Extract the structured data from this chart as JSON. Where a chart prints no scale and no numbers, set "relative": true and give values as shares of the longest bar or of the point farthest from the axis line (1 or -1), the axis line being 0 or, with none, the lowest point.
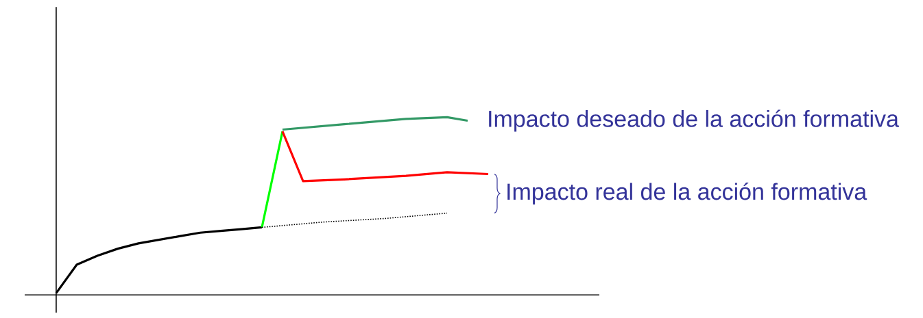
{
  "chart_data": {
    "type": "line",
    "relative": true,
    "marker": "none",
    "line_style": "solid",
    "categories": [
      null,
      null,
      null,
      null,
      null,
      null,
      null,
      null,
      null,
      null,
      null,
      null,
      null,
      null,
      null,
      null,
      null,
      null,
      null,
      null,
      null,
      null,
      null,
      null,
      null,
      null,
      null
    ],
    "series": [
      {
        "color": "#000000",
        "values": [
          0.01,
          0.17,
          0.22,
          0.26,
          0.29,
          0.31,
          0.33,
          0.35,
          0.36,
          0.37,
          0.38,
          null,
          null,
          null,
          null,
          null,
          null,
          null,
          null,
          null,
          null,
          null,
          null,
          null,
          null,
          null,
          null
        ]
      },
      {
        "color": "#00ff00",
        "values": [
          null,
          null,
          null,
          null,
          null,
          null,
          null,
          null,
          null,
          null,
          0.38,
          0.92,
          null,
          null,
          null,
          null,
          null,
          null,
          null,
          null,
          null,
          null,
          null,
          null,
          null,
          null,
          null
        ]
      },
      {
        "color": "#ff0000",
        "values": [
          null,
          null,
          null,
          null,
          null,
          null,
          null,
          null,
          null,
          null,
          null,
          0.92,
          0.64,
          null,
          0.65,
          null,
          null,
          0.67,
          null,
          0.69,
          null,
          0.68,
          null,
          null,
          null,
          null,
          null
        ]
      },
      {
        "color": "#339966",
        "values": [
          null,
          null,
          null,
          null,
          null,
          null,
          null,
          null,
          null,
          null,
          null,
          0.93,
          null,
          null,
          0.96,
          null,
          null,
          0.99,
          null,
          1.0,
          0.98,
          null,
          null,
          null,
          null,
          null,
          null
        ]
      },
      {
        "color": "#000000",
        "line_style": "dotted",
        "values": [
          null,
          null,
          null,
          null,
          null,
          null,
          null,
          null,
          null,
          null,
          0.38,
          null,
          null,
          0.41,
          null,
          null,
          0.43,
          null,
          null,
          0.46,
          null,
          null,
          null,
          null,
          null,
          null,
          null
        ]
      }
    ],
    "annotations": [
      "Impacto deseado de la acción formativa",
      "Impacto real de la acción formativa"
    ]
  }
}
